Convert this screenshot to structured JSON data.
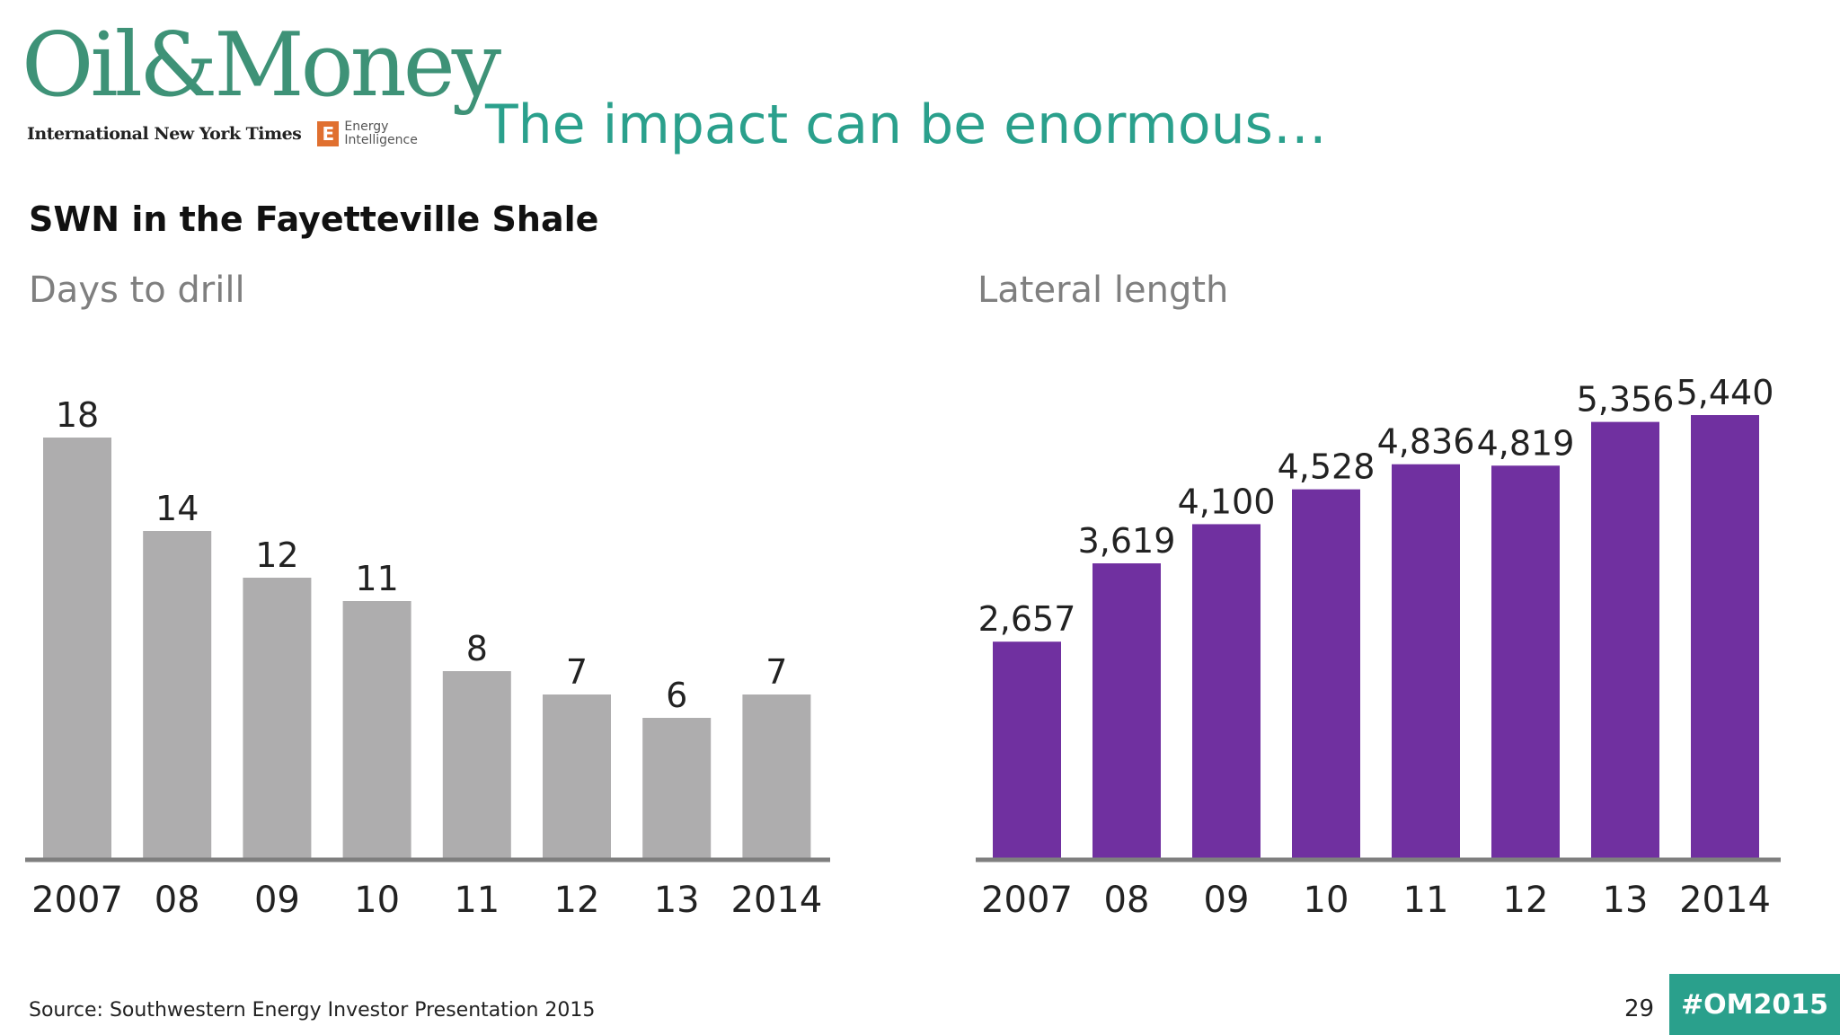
{
  "logo": {
    "main": "Oil&Money",
    "partner_nyt": "International New York Times",
    "partner_ei_line1": "Energy",
    "partner_ei_line2": "Intelligence",
    "partner_ei_mark": "E",
    "brand_color": "#3e9277"
  },
  "slide": {
    "title": "The impact can be enormous…",
    "subtitle": "SWN in the Fayetteville Shale",
    "title_color": "#2aa08c"
  },
  "footer": {
    "source": "Source: Southwestern Energy Investor Presentation 2015",
    "page_number": "29",
    "hashtag": "#OM2015"
  },
  "chart_data": [
    {
      "type": "bar",
      "title": "Days to drill",
      "categories": [
        "2007",
        "08",
        "09",
        "10",
        "11",
        "12",
        "13",
        "2014"
      ],
      "values": [
        18,
        14,
        12,
        11,
        8,
        7,
        6,
        7
      ],
      "value_labels": [
        "18",
        "14",
        "12",
        "11",
        "8",
        "7",
        "6",
        "7"
      ],
      "ylim": [
        0,
        18
      ],
      "bar_color": "#aeadae",
      "grid": false,
      "legend": "none"
    },
    {
      "type": "bar",
      "title": "Lateral length",
      "categories": [
        "2007",
        "08",
        "09",
        "10",
        "11",
        "12",
        "13",
        "2014"
      ],
      "values": [
        2657,
        3619,
        4100,
        4528,
        4836,
        4819,
        5356,
        5440
      ],
      "value_labels": [
        "2,657",
        "3,619",
        "4,100",
        "4,528",
        "4,836",
        "4,819",
        "5,356",
        "5,440"
      ],
      "ylim": [
        0,
        5440
      ],
      "bar_color": "#7030a0",
      "grid": false,
      "legend": "none"
    }
  ]
}
